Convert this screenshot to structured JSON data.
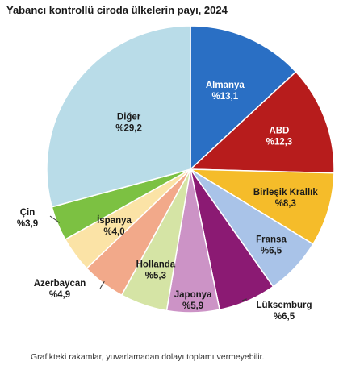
{
  "chart_data": {
    "type": "pie",
    "title": "Yabancı kontrollü ciroda ülkelerin payı, 2024",
    "footnote": "Grafikteki rakamlar, yuvarlamadan dolayı toplamı vermeyebilir.",
    "slices": [
      {
        "name": "Almanya",
        "value": 13.1,
        "value_label": "%13,1",
        "color": "#2a6fc4",
        "label_color": "#ffffff"
      },
      {
        "name": "ABD",
        "value": 12.3,
        "value_label": "%12,3",
        "color": "#b71c1c",
        "label_color": "#ffffff"
      },
      {
        "name": "Birleşik Krallık",
        "value": 8.3,
        "value_label": "%8,3",
        "color": "#f5bc2a",
        "label_color": "#1a1a1a"
      },
      {
        "name": "Fransa",
        "value": 6.5,
        "value_label": "%6,5",
        "color": "#a9c3e8",
        "label_color": "#1a1a1a"
      },
      {
        "name": "Lüksemburg",
        "value": 6.5,
        "value_label": "%6,5",
        "color": "#8b1a73",
        "label_color": "#1a1a1a"
      },
      {
        "name": "Japonya",
        "value": 5.9,
        "value_label": "%5,9",
        "color": "#cc93c6",
        "label_color": "#1a1a1a"
      },
      {
        "name": "Hollanda",
        "value": 5.3,
        "value_label": "%5,3",
        "color": "#d5e4a5",
        "label_color": "#1a1a1a"
      },
      {
        "name": "Azerbaycan",
        "value": 4.9,
        "value_label": "%4,9",
        "color": "#f2a98a",
        "label_color": "#1a1a1a"
      },
      {
        "name": "İspanya",
        "value": 4.0,
        "value_label": "%4,0",
        "color": "#fbe3a6",
        "label_color": "#1a1a1a"
      },
      {
        "name": "Çin",
        "value": 3.9,
        "value_label": "%3,9",
        "color": "#7cc142",
        "label_color": "#1a1a1a"
      },
      {
        "name": "Diğer",
        "value": 29.2,
        "value_label": "%29,2",
        "color": "#b9dce8",
        "label_color": "#1a1a1a"
      }
    ]
  }
}
